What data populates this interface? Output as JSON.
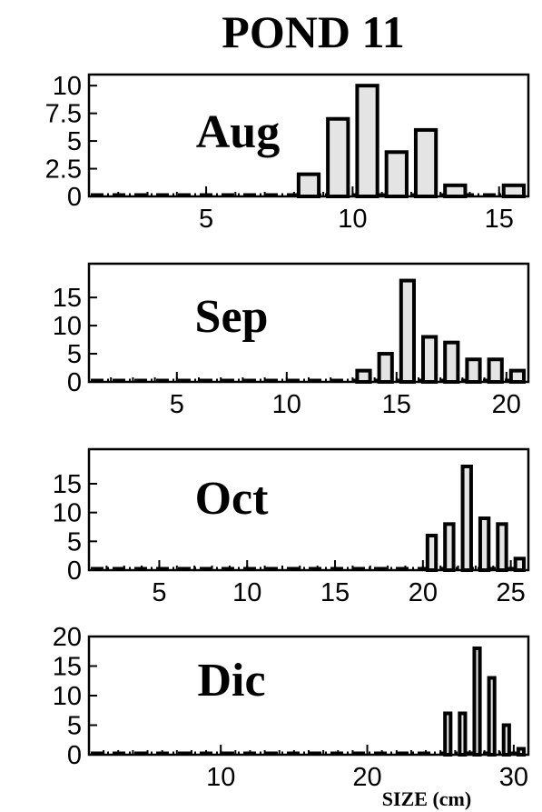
{
  "title": "POND 11",
  "x_axis_label": "SIZE (cm)",
  "colors": {
    "bar_fill": "#e4e4e4",
    "bar_edge": "#000000",
    "frame": "#000000",
    "background": "#ffffff"
  },
  "chart_data": [
    {
      "type": "bar",
      "panel_label": "Aug",
      "bar_width": 1,
      "x": [
        8.5,
        9.5,
        10.5,
        11.5,
        12.5,
        13.5,
        15.5
      ],
      "values": [
        2,
        7,
        10,
        4,
        6,
        1,
        1
      ],
      "xlim": [
        1,
        16
      ],
      "ylim": [
        0,
        11
      ],
      "x_ticks": [
        5,
        10,
        15
      ],
      "y_ticks": [
        0,
        2.5,
        5,
        7.5,
        10
      ],
      "y_tick_labels": [
        "0",
        "2.5",
        "5",
        "7.5",
        "10"
      ]
    },
    {
      "type": "bar",
      "panel_label": "Sep",
      "bar_width": 1,
      "x": [
        13.5,
        14.5,
        15.5,
        16.5,
        17.5,
        18.5,
        19.5,
        20.5
      ],
      "values": [
        2,
        5,
        18,
        8,
        7,
        4,
        4,
        2
      ],
      "xlim": [
        1,
        21
      ],
      "ylim": [
        0,
        21
      ],
      "x_ticks": [
        5,
        10,
        15,
        20
      ],
      "y_ticks": [
        0,
        5,
        10,
        15
      ],
      "y_tick_labels": [
        "0",
        "5",
        "10",
        "15"
      ]
    },
    {
      "type": "bar",
      "panel_label": "Oct",
      "bar_width": 1,
      "x": [
        20.5,
        21.5,
        22.5,
        23.5,
        24.5,
        25.5
      ],
      "values": [
        6,
        8,
        18,
        9,
        8,
        2
      ],
      "xlim": [
        1,
        26
      ],
      "ylim": [
        0,
        21
      ],
      "x_ticks": [
        5,
        10,
        15,
        20,
        25
      ],
      "y_ticks": [
        0,
        5,
        10,
        15
      ],
      "y_tick_labels": [
        "0",
        "5",
        "10",
        "15"
      ]
    },
    {
      "type": "bar",
      "panel_label": "Dic",
      "bar_width": 1,
      "x": [
        25.5,
        26.5,
        27.5,
        28.5,
        29.5,
        30.5
      ],
      "values": [
        7,
        7,
        18,
        13,
        5,
        1
      ],
      "xlim": [
        1,
        31
      ],
      "ylim": [
        0,
        20
      ],
      "x_ticks": [
        10,
        20,
        30
      ],
      "y_ticks": [
        0,
        5,
        10,
        15,
        20
      ],
      "y_tick_labels": [
        "0",
        "5",
        "10",
        "15",
        "20"
      ]
    }
  ]
}
